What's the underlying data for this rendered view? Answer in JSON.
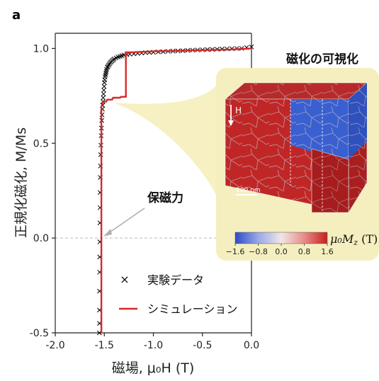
{
  "panel_label": "a",
  "chart_data": {
    "type": "scatter",
    "xlabel": "磁場, μ₀H (T)",
    "ylabel": "正規化磁化, M/Ms",
    "xlim": [
      -2.0,
      0.0
    ],
    "ylim": [
      -0.5,
      1.08
    ],
    "xticks": [
      -2.0,
      -1.5,
      -1.0,
      -0.5,
      0.0
    ],
    "xtick_labels": [
      "-2.0",
      "-1.5",
      "-1.0",
      "-0.5",
      "0.0"
    ],
    "yticks": [
      -0.5,
      0.0,
      0.5,
      1.0
    ],
    "ytick_labels": [
      "-0.5",
      "0.0",
      "0.5",
      "1.0"
    ],
    "zero_line": "dashed",
    "legend_position": "bottom-left",
    "series": [
      {
        "name": "実験データ",
        "marker": "x",
        "color": "#000000",
        "x": [
          -1.55,
          -1.55,
          -1.55,
          -1.549,
          -1.548,
          -1.547,
          -1.546,
          -1.545,
          -1.544,
          -1.543,
          -1.541,
          -1.539,
          -1.537,
          -1.535,
          -1.532,
          -1.529,
          -1.526,
          -1.523,
          -1.52,
          -1.517,
          -1.514,
          -1.511,
          -1.508,
          -1.505,
          -1.502,
          -1.499,
          -1.496,
          -1.492,
          -1.488,
          -1.484,
          -1.48,
          -1.476,
          -1.47,
          -1.464,
          -1.456,
          -1.448,
          -1.44,
          -1.43,
          -1.42,
          -1.41,
          -1.4,
          -1.38,
          -1.36,
          -1.34,
          -1.32,
          -1.3,
          -1.27,
          -1.24,
          -1.2,
          -1.16,
          -1.12,
          -1.08,
          -1.04,
          -1.0,
          -0.95,
          -0.9,
          -0.85,
          -0.8,
          -0.75,
          -0.7,
          -0.65,
          -0.6,
          -0.55,
          -0.5,
          -0.45,
          -0.4,
          -0.35,
          -0.3,
          -0.25,
          -0.2,
          -0.15,
          -0.1,
          -0.05,
          0.0
        ],
        "y": [
          -0.5,
          -0.45,
          -0.38,
          -0.28,
          -0.18,
          -0.1,
          -0.02,
          0.08,
          0.16,
          0.24,
          0.32,
          0.38,
          0.44,
          0.49,
          0.54,
          0.58,
          0.62,
          0.65,
          0.68,
          0.7,
          0.72,
          0.74,
          0.76,
          0.78,
          0.8,
          0.82,
          0.835,
          0.85,
          0.86,
          0.87,
          0.88,
          0.89,
          0.9,
          0.905,
          0.912,
          0.918,
          0.925,
          0.93,
          0.935,
          0.94,
          0.945,
          0.95,
          0.955,
          0.958,
          0.962,
          0.965,
          0.968,
          0.97,
          0.972,
          0.974,
          0.976,
          0.978,
          0.979,
          0.98,
          0.982,
          0.983,
          0.985,
          0.986,
          0.987,
          0.988,
          0.99,
          0.991,
          0.992,
          0.993,
          0.994,
          0.995,
          0.996,
          0.997,
          0.998,
          0.999,
          1.0,
          1.0,
          1.005,
          1.008
        ]
      },
      {
        "name": "シミュレーション",
        "marker": "line",
        "color": "#d62828",
        "x": [
          -1.53,
          -1.53,
          -1.52,
          -1.51,
          -1.5,
          -1.49,
          -1.48,
          -1.47,
          -1.46,
          -1.45,
          -1.44,
          -1.43,
          -1.42,
          -1.41,
          -1.4,
          -1.39,
          -1.38,
          -1.37,
          -1.36,
          -1.35,
          -1.34,
          -1.33,
          -1.32,
          -1.31,
          -1.3,
          -1.29,
          -1.28,
          -1.28,
          -1.2,
          -1.0,
          -0.8,
          -0.6,
          -0.4,
          -0.2,
          0.0
        ],
        "y": [
          -0.5,
          0.69,
          0.71,
          0.72,
          0.72,
          0.72,
          0.72,
          0.73,
          0.73,
          0.73,
          0.73,
          0.73,
          0.73,
          0.74,
          0.74,
          0.74,
          0.74,
          0.74,
          0.74,
          0.74,
          0.74,
          0.745,
          0.745,
          0.745,
          0.745,
          0.745,
          0.745,
          0.98,
          0.98,
          0.985,
          0.987,
          0.99,
          0.992,
          0.995,
          1.0
        ]
      }
    ],
    "annotations": [
      {
        "text": "保磁力",
        "points_to": [
          -1.55,
          0.0
        ]
      }
    ]
  },
  "inset": {
    "title": "磁化の可視化",
    "field_label": "H",
    "scale_bar": "200 nm",
    "colorbar": {
      "label_var": "μ₀M",
      "label_sub": "z",
      "label_unit": " (T)",
      "ticks": [
        "−1.6",
        "−0.8",
        "0.0",
        "0.8",
        "1.6"
      ],
      "colors": [
        "#2c4cc8",
        "#9aa8e8",
        "#f0e6e6",
        "#e88c88",
        "#c81e1e"
      ]
    }
  },
  "legend": {
    "marker_symbol": "×",
    "entries": [
      "実験データ",
      "シミュレーション"
    ]
  }
}
